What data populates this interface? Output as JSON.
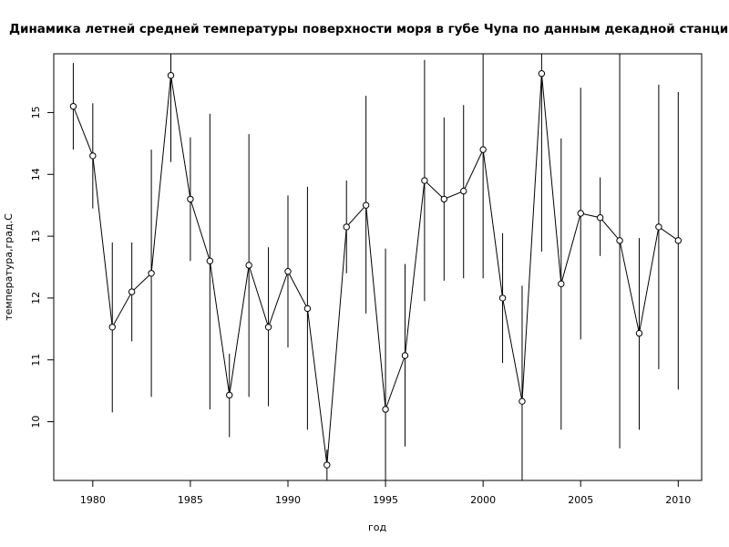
{
  "chart_data": {
    "type": "line",
    "title": "Динамика летней средней температуры поверхности моря в губе Чупа по данным декадной станции ЗИН РАН",
    "xlabel": "год",
    "ylabel": "температура,град.С",
    "xlim": [
      1978.0,
      2011.2
    ],
    "ylim": [
      9.05,
      15.95
    ],
    "x_ticks": [
      1980,
      1985,
      1990,
      1995,
      2000,
      2005,
      2010
    ],
    "x_tick_labels": [
      "1980",
      "1985",
      "1990",
      "1995",
      "2000",
      "2005",
      "2010"
    ],
    "y_ticks": [
      10,
      11,
      12,
      13,
      14,
      15
    ],
    "y_tick_labels": [
      "10",
      "11",
      "12",
      "13",
      "14",
      "15"
    ],
    "grid": false,
    "series": [
      {
        "x": [
          1979,
          1980,
          1981,
          1982,
          1983,
          1984,
          1985,
          1986,
          1987,
          1988,
          1989,
          1990,
          1991,
          1992,
          1993,
          1994,
          1995,
          1996,
          1997,
          1998,
          1999,
          2000,
          2001,
          2002,
          2003,
          2004,
          2005,
          2006,
          2007,
          2008,
          2009,
          2010
        ],
        "y": [
          15.1,
          14.3,
          11.53,
          12.1,
          12.4,
          15.6,
          13.6,
          12.6,
          10.43,
          12.53,
          11.53,
          12.43,
          11.83,
          9.3,
          13.15,
          13.5,
          10.2,
          11.07,
          13.9,
          13.6,
          13.73,
          14.4,
          12.0,
          10.33,
          15.63,
          12.23,
          13.37,
          13.3,
          12.93,
          11.43,
          13.15,
          12.93
        ],
        "err_low": [
          14.4,
          13.45,
          10.15,
          11.3,
          10.4,
          14.2,
          12.6,
          10.2,
          9.75,
          10.4,
          10.25,
          11.2,
          9.87,
          9.05,
          12.4,
          11.75,
          9.05,
          9.6,
          11.95,
          12.28,
          12.32,
          12.32,
          10.95,
          9.05,
          12.75,
          9.87,
          11.33,
          12.68,
          9.57,
          9.87,
          10.85,
          10.52
        ],
        "err_high": [
          15.8,
          15.15,
          12.9,
          12.9,
          14.4,
          15.95,
          14.6,
          14.98,
          11.1,
          14.65,
          12.82,
          13.66,
          13.8,
          9.55,
          13.9,
          15.27,
          12.8,
          12.55,
          15.85,
          14.92,
          15.12,
          15.95,
          13.05,
          12.2,
          15.95,
          14.58,
          15.4,
          13.95,
          15.95,
          12.97,
          15.45,
          15.33
        ]
      }
    ]
  }
}
